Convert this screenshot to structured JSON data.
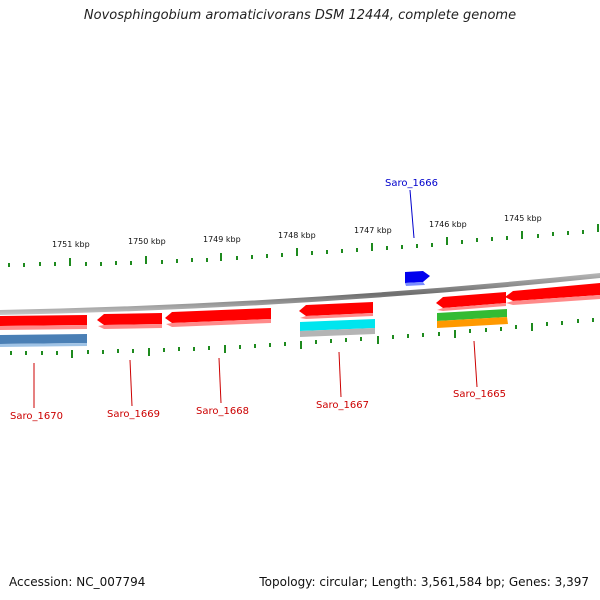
{
  "title": "Novosphingobium aromaticivorans DSM 12444, complete genome",
  "footer": {
    "accession": "Accession: NC_007794",
    "stats": "Topology: circular; Length: 3,561,584 bp; Genes: 3,397"
  },
  "ticks": [
    {
      "label": "1751 kbp"
    },
    {
      "label": "1750 kbp"
    },
    {
      "label": "1749 kbp"
    },
    {
      "label": "1748 kbp"
    },
    {
      "label": "1747 kbp"
    },
    {
      "label": "1746 kbp"
    },
    {
      "label": "1745 kbp"
    }
  ],
  "genes": [
    {
      "name": "Saro_1670",
      "color": "#cc0000"
    },
    {
      "name": "Saro_1669",
      "color": "#cc0000"
    },
    {
      "name": "Saro_1668",
      "color": "#cc0000"
    },
    {
      "name": "Saro_1667",
      "color": "#cc0000"
    },
    {
      "name": "Saro_1666",
      "color": "#0000cc"
    },
    {
      "name": "Saro_1665",
      "color": "#cc0000"
    }
  ],
  "colors": {
    "backbone": "#8a8a8a",
    "feature_red": "#ff0000",
    "feature_blue": "#0000ee",
    "feature_steelblue": "#4a7fb5",
    "feature_cyan": "#00e5ee",
    "feature_green": "#33bb33",
    "feature_orange": "#ff9900",
    "tick_green": "#1e8a1e"
  }
}
